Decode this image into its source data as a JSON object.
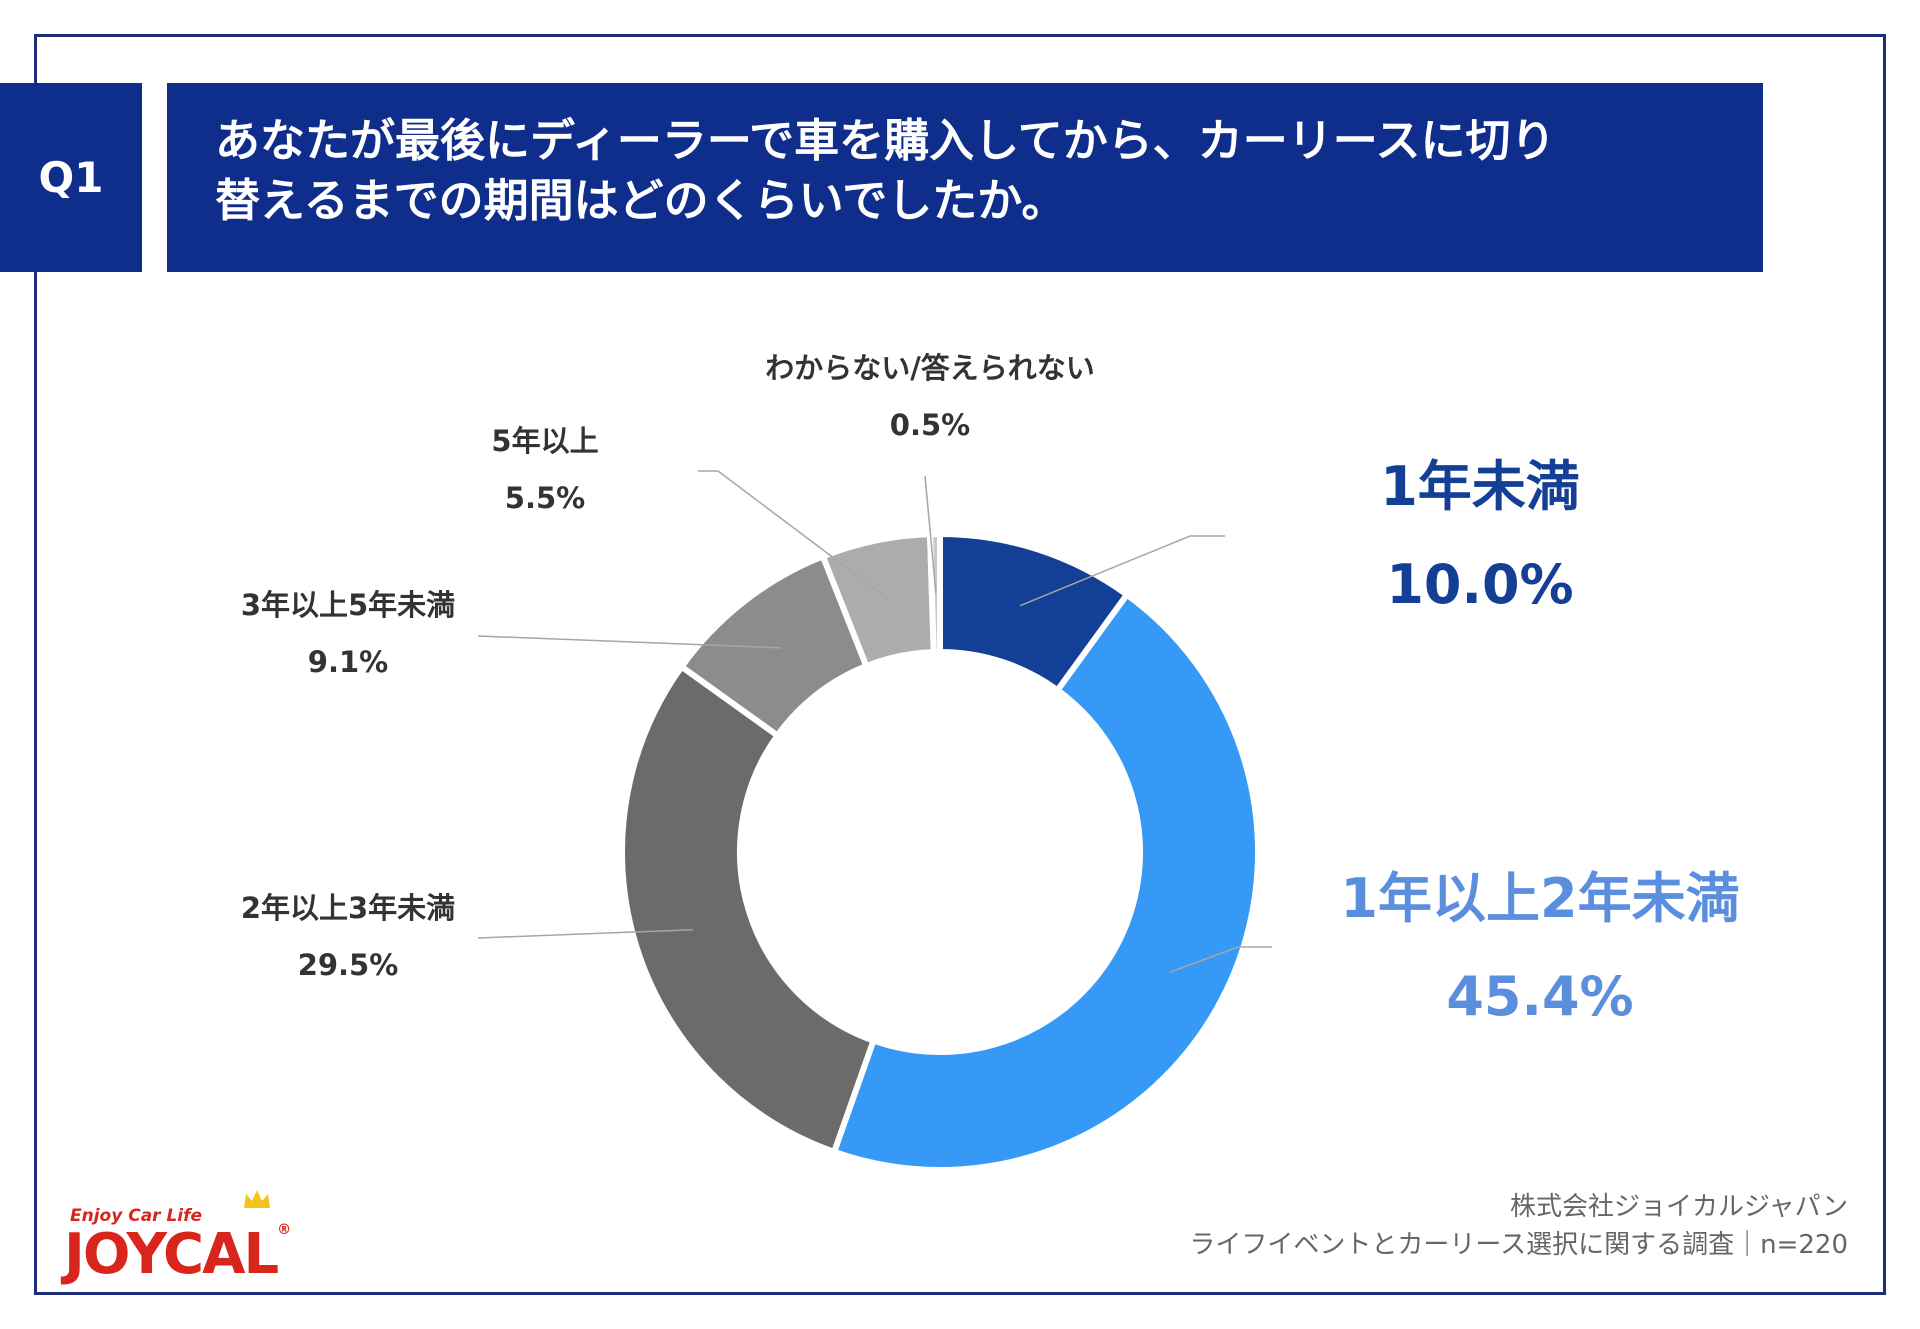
{
  "header": {
    "badge": "Q1",
    "question_line1": "あなたが最後にディーラーで車を購入してから、カーリースに切り",
    "question_line2": "替えるまでの期間はどのくらいでしたか。"
  },
  "chart_data": {
    "type": "pie",
    "donut": true,
    "unit": "%",
    "slices": [
      {
        "label": "1年未満",
        "value": 10.0,
        "display": "10.0%",
        "color": "#143f96",
        "label_color": "#143f96",
        "emphasis": true
      },
      {
        "label": "1年以上2年未満",
        "value": 45.4,
        "display": "45.4%",
        "color": "#3699f6",
        "label_color": "#5b8fde",
        "emphasis": true
      },
      {
        "label": "2年以上3年未満",
        "value": 29.5,
        "display": "29.5%",
        "color": "#6b6b6b",
        "label_color": "#333333",
        "emphasis": false
      },
      {
        "label": "3年以上5年未満",
        "value": 9.1,
        "display": "9.1%",
        "color": "#8c8c8c",
        "label_color": "#333333",
        "emphasis": false
      },
      {
        "label": "5年以上",
        "value": 5.5,
        "display": "5.5%",
        "color": "#acacac",
        "label_color": "#333333",
        "emphasis": false
      },
      {
        "label": "わからない/答えられない",
        "value": 0.5,
        "display": "0.5%",
        "color": "#c9c9c9",
        "label_color": "#333333",
        "emphasis": false
      }
    ]
  },
  "footer": {
    "company": "株式会社ジョイカルジャパン",
    "survey": "ライフイベントとカーリース選択に関する調査｜n=220"
  },
  "logo": {
    "tagline": "Enjoy Car Life",
    "brand": "JOYCAL",
    "mark": "®"
  }
}
